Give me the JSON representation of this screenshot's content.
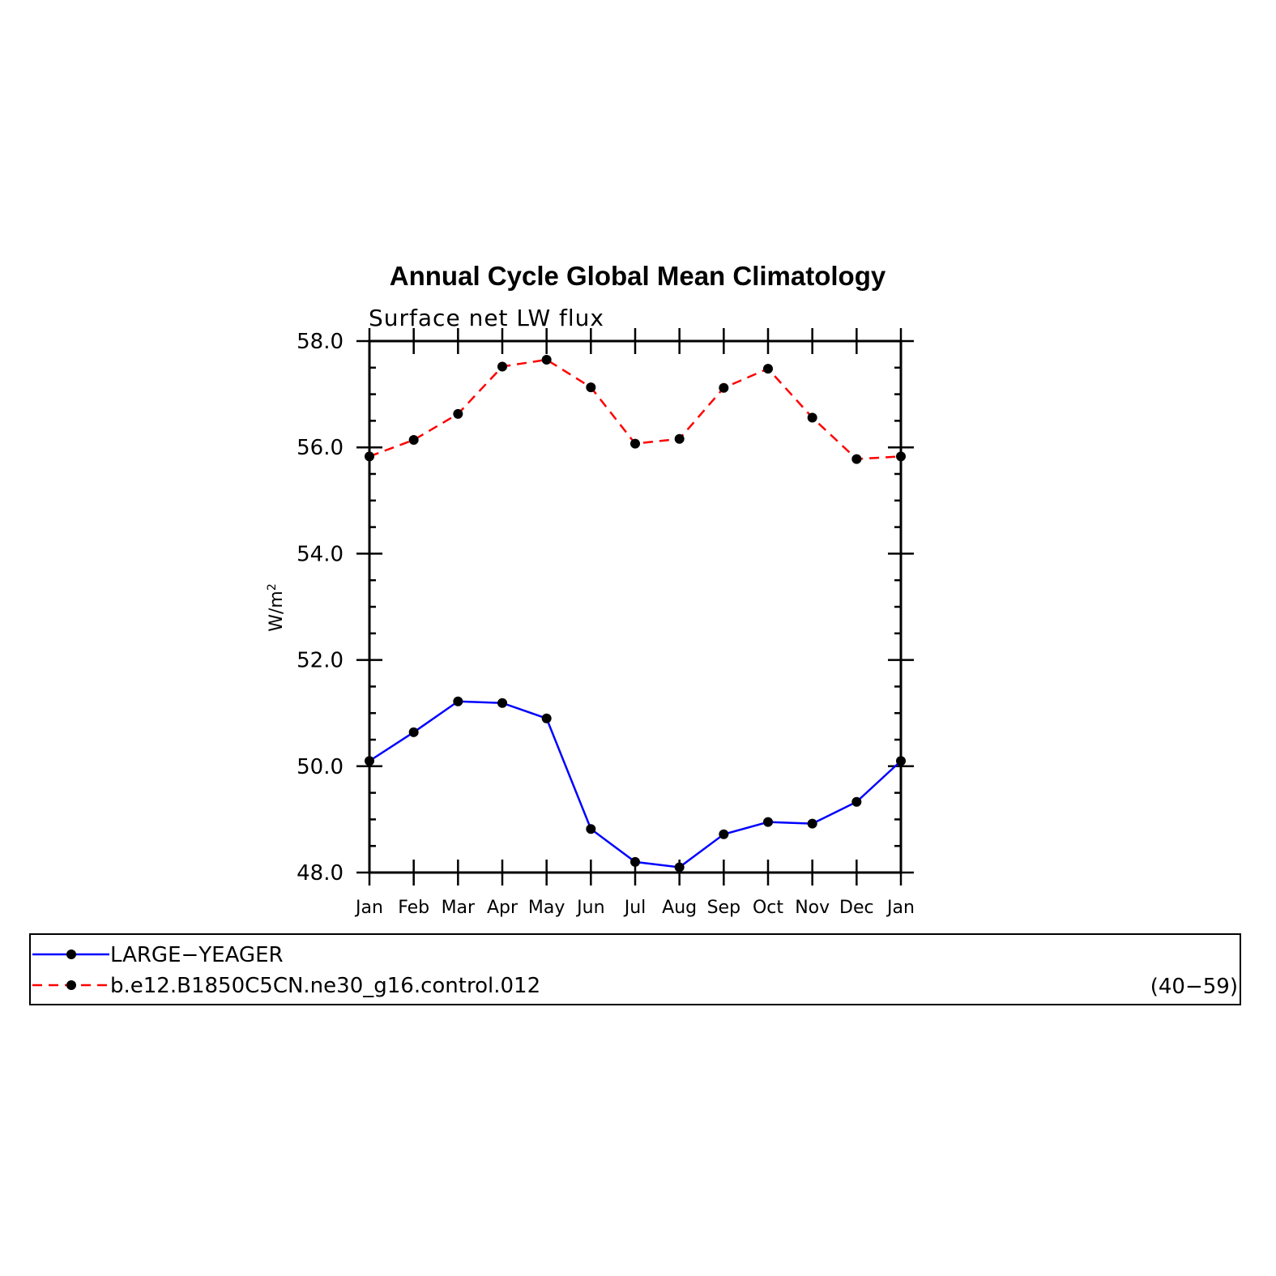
{
  "chart_data": {
    "type": "line",
    "title": "Annual Cycle Global Mean Climatology",
    "subtitle": "Surface net LW flux",
    "ylabel_base": "W/m",
    "ylabel_sup": "2",
    "ylim": [
      48.0,
      58.0
    ],
    "yticks": [
      "48.0",
      "50.0",
      "52.0",
      "54.0",
      "56.0",
      "58.0"
    ],
    "categories": [
      "Jan",
      "Feb",
      "Mar",
      "Apr",
      "May",
      "Jun",
      "Jul",
      "Aug",
      "Sep",
      "Oct",
      "Nov",
      "Dec",
      "Jan"
    ],
    "series": [
      {
        "name": "LARGE−YEAGER",
        "color": "#0000ff",
        "dash": "solid",
        "values": [
          50.1,
          50.64,
          51.22,
          51.19,
          50.9,
          48.82,
          48.2,
          48.1,
          48.72,
          48.95,
          48.92,
          49.33,
          50.1
        ]
      },
      {
        "name": "b.e12.B1850C5CN.ne30_g16.control.012",
        "color": "#ff0000",
        "dash": "dashed",
        "values": [
          55.83,
          56.14,
          56.63,
          57.52,
          57.65,
          57.13,
          56.07,
          56.16,
          57.12,
          57.48,
          56.56,
          55.78,
          55.83
        ]
      }
    ],
    "legend_note": "(40−59)"
  }
}
